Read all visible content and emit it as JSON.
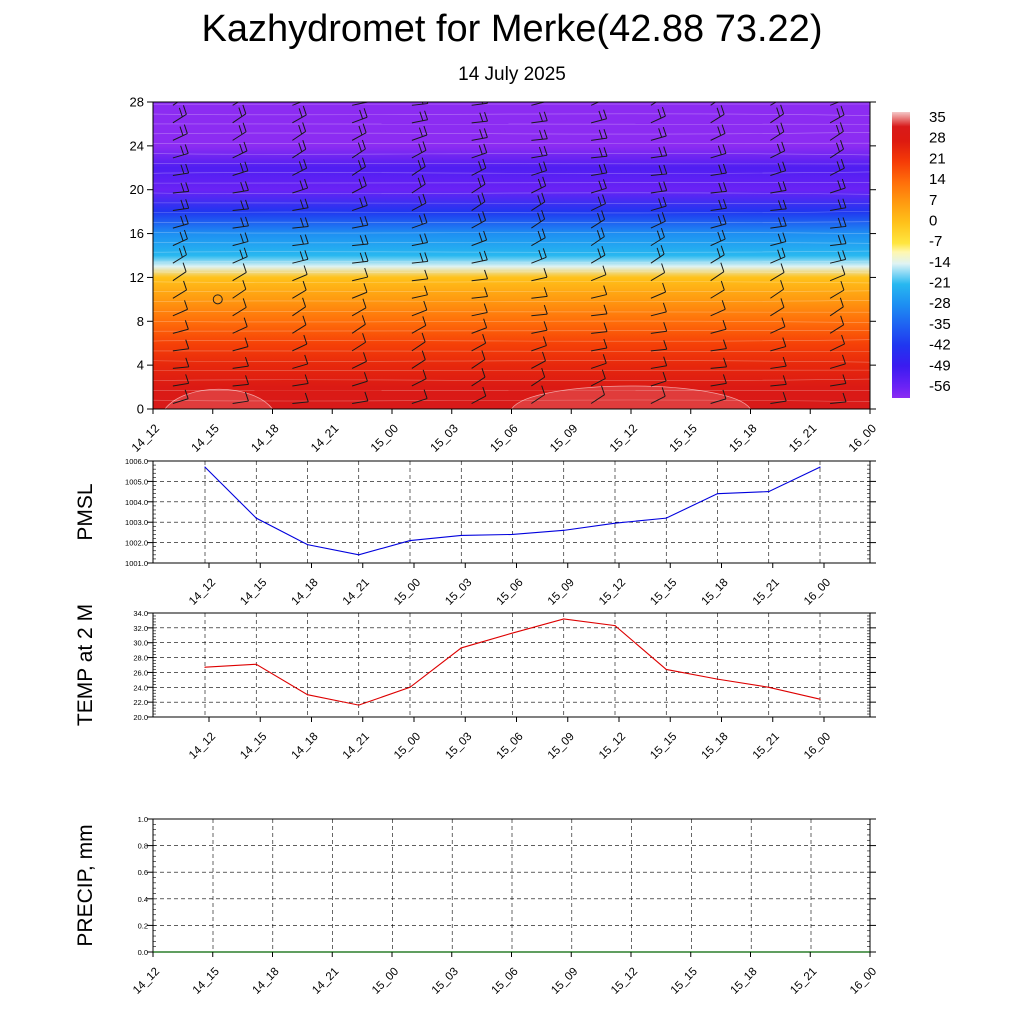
{
  "title": "Kazhydromet for Merke(42.88 73.22)",
  "subtitle": "14 July 2025",
  "time_labels": [
    "14_12",
    "14_15",
    "14_18",
    "14_21",
    "15_00",
    "15_03",
    "15_06",
    "15_09",
    "15_12",
    "15_15",
    "15_18",
    "15_21",
    "16_00"
  ],
  "colors": {
    "pmsl_line": "#0000dd",
    "temp_line": "#dd0000",
    "precip_line": "#006400",
    "grid": "#000000"
  },
  "chart_data": [
    {
      "type": "heatmap",
      "panel": "cross-section",
      "y_ticks": [
        0,
        4,
        8,
        12,
        16,
        20,
        24,
        28
      ],
      "ylim": [
        0,
        28
      ],
      "x": [
        "14_12",
        "14_15",
        "14_18",
        "14_21",
        "15_00",
        "15_03",
        "15_06",
        "15_09",
        "15_12",
        "15_15",
        "15_18",
        "15_21",
        "16_00"
      ],
      "colorbar": {
        "labels": [
          "35",
          "28",
          "21",
          "14",
          "7",
          "0",
          "-7",
          "-14",
          "-21",
          "-28",
          "-35",
          "-42",
          "-49",
          "-56"
        ],
        "min": -60,
        "max": 38
      },
      "layers": [
        {
          "y": 0,
          "value": 33
        },
        {
          "y": 2,
          "value": 30
        },
        {
          "y": 4,
          "value": 25
        },
        {
          "y": 6,
          "value": 20
        },
        {
          "y": 8,
          "value": 14
        },
        {
          "y": 10,
          "value": 7
        },
        {
          "y": 12,
          "value": 0
        },
        {
          "y": 13,
          "value": -14
        },
        {
          "y": 14,
          "value": -21
        },
        {
          "y": 16,
          "value": -28
        },
        {
          "y": 18,
          "value": -42
        },
        {
          "y": 20,
          "value": -56
        },
        {
          "y": 22,
          "value": -52
        },
        {
          "y": 24,
          "value": -60
        },
        {
          "y": 28,
          "value": -60
        }
      ],
      "warm_patches": [
        {
          "x_from": 0.2,
          "x_to": 2.0,
          "y_top": 2.4
        },
        {
          "x_from": 6.0,
          "x_to": 10.0,
          "y_top": 2.8
        }
      ],
      "marker_circle": {
        "x": 1.0,
        "y": 10
      }
    },
    {
      "type": "line",
      "panel": "pmsl",
      "ylabel": "PMSL",
      "ylim": [
        1001.0,
        1006.0
      ],
      "y_ticks": [
        "1001.0",
        "1002.0",
        "1003.0",
        "1004.0",
        "1005.0",
        "1006.0"
      ],
      "categories": [
        "14_12",
        "14_15",
        "14_18",
        "14_21",
        "15_00",
        "15_03",
        "15_06",
        "15_09",
        "15_12",
        "15_15",
        "15_18",
        "15_21",
        "16_00"
      ],
      "series": [
        {
          "values": [
            1005.7,
            1003.2,
            1001.9,
            1001.4,
            1002.1,
            1002.35,
            1002.4,
            1002.6,
            1002.95,
            1003.2,
            1004.4,
            1004.5,
            1005.7
          ]
        }
      ]
    },
    {
      "type": "line",
      "panel": "temp",
      "ylabel": "TEMP at 2 M",
      "ylim": [
        20.0,
        34.0
      ],
      "y_ticks": [
        "20.0",
        "22.0",
        "24.0",
        "26.0",
        "28.0",
        "30.0",
        "32.0",
        "34.0"
      ],
      "categories": [
        "14_12",
        "14_15",
        "14_18",
        "14_21",
        "15_00",
        "15_03",
        "15_06",
        "15_09",
        "15_12",
        "15_15",
        "15_18",
        "15_21",
        "16_00"
      ],
      "series": [
        {
          "values": [
            26.7,
            27.1,
            23.0,
            21.6,
            24.0,
            29.3,
            31.3,
            33.2,
            32.3,
            26.4,
            25.1,
            24.0,
            22.4
          ]
        }
      ]
    },
    {
      "type": "line",
      "panel": "precip",
      "ylabel": "PRECIP, mm",
      "ylim": [
        0.0,
        1.0
      ],
      "y_ticks": [
        "0.0",
        "0.2",
        "0.4",
        "0.6",
        "0.8",
        "1.0"
      ],
      "categories": [
        "14_12",
        "14_15",
        "14_18",
        "14_21",
        "15_00",
        "15_03",
        "15_06",
        "15_09",
        "15_12",
        "15_15",
        "15_18",
        "15_21",
        "16_00"
      ],
      "series": [
        {
          "values": [
            0,
            0,
            0,
            0,
            0,
            0,
            0,
            0,
            0,
            0,
            0,
            0,
            0
          ]
        }
      ]
    }
  ]
}
